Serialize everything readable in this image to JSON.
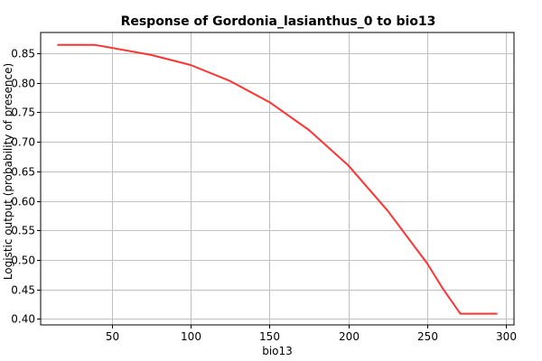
{
  "chart_data": {
    "type": "line",
    "title": "Response of Gordonia_lasianthus_0 to bio13",
    "xlabel": "bio13",
    "ylabel": "Logistic output (probability of presence)",
    "xlim": [
      5,
      305
    ],
    "ylim": [
      0.39,
      0.885
    ],
    "x_ticks": [
      50,
      100,
      150,
      200,
      250,
      300
    ],
    "x_tick_labels": [
      "50",
      "100",
      "150",
      "200",
      "250",
      "300"
    ],
    "y_ticks": [
      0.4,
      0.45,
      0.5,
      0.55,
      0.6,
      0.65,
      0.7,
      0.75,
      0.8,
      0.85
    ],
    "y_tick_labels": [
      "0.40",
      "0.45",
      "0.50",
      "0.55",
      "0.60",
      "0.65",
      "0.70",
      "0.75",
      "0.80",
      "0.85"
    ],
    "grid": true,
    "series": [
      {
        "color": "#ff3333",
        "x": [
          16,
          39,
          50,
          75,
          100,
          125,
          150,
          175,
          200,
          225,
          250,
          260,
          271,
          294
        ],
        "y": [
          0.864,
          0.864,
          0.859,
          0.847,
          0.83,
          0.803,
          0.767,
          0.72,
          0.66,
          0.583,
          0.494,
          0.451,
          0.409,
          0.409
        ]
      }
    ]
  }
}
